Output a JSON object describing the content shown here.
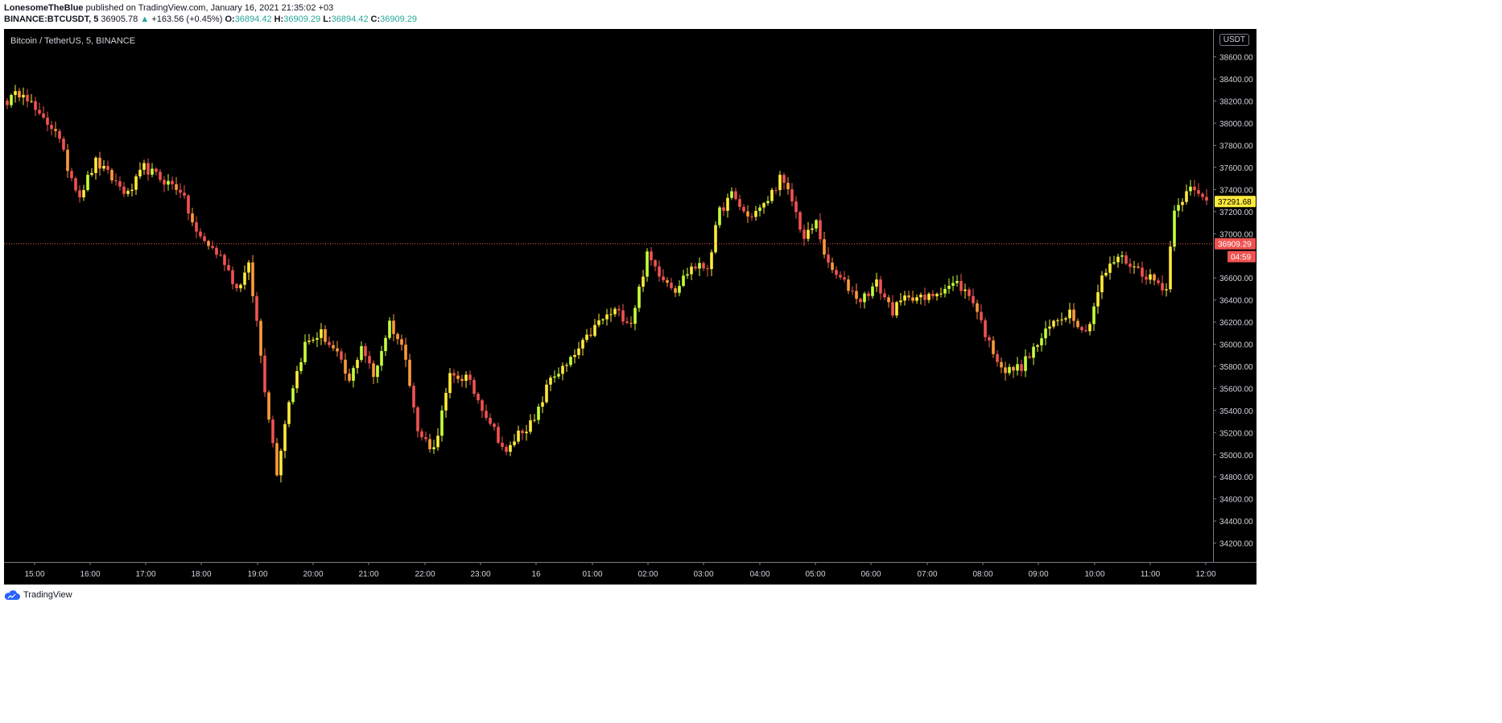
{
  "header": {
    "author": "LonesomeTheBlue",
    "published_text": "published on TradingView.com, January 16, 2021 21:35:02 +03",
    "symbol": "BINANCE:BTCUSDT, 5",
    "last_price": "36905.78",
    "change": "+163.56 (+0.45%)",
    "open_label": "O:",
    "open": "36894.42",
    "high_label": "H:",
    "high": "36909.29",
    "low_label": "L:",
    "low": "36894.42",
    "close_label": "C:",
    "close": "36909.29"
  },
  "chart_title": "Bitcoin / TetherUS, 5, BINANCE",
  "currency": "USDT",
  "footer": {
    "brand": "TradingView",
    "logo_icon": "tradingview-cloud-icon"
  },
  "price_labels": {
    "yellow": {
      "value": 37291.68,
      "text": "37291.68",
      "color": "#ffeb3b"
    },
    "current": {
      "value": 36909.29,
      "text": "36909.29",
      "color": "#ef5350"
    },
    "countdown": {
      "text": "04:59",
      "color": "#ef5350"
    }
  },
  "chart_data": {
    "type": "candlestick",
    "title": "Bitcoin / TetherUS, 5, BINANCE",
    "x_ticks": [
      "15:00",
      "16:00",
      "17:00",
      "18:00",
      "19:00",
      "20:00",
      "21:00",
      "22:00",
      "23:00",
      "16",
      "01:00",
      "02:00",
      "03:00",
      "04:00",
      "05:00",
      "06:00",
      "07:00",
      "08:00",
      "09:00",
      "10:00",
      "11:00",
      "12:00"
    ],
    "y_ticks": [
      "34200.00",
      "34400.00",
      "34600.00",
      "34800.00",
      "35000.00",
      "35200.00",
      "35400.00",
      "35600.00",
      "35800.00",
      "36000.00",
      "36200.00",
      "36400.00",
      "36600.00",
      "37000.00",
      "37200.00",
      "37400.00",
      "37600.00",
      "37800.00",
      "38000.00",
      "38200.00",
      "38400.00",
      "38600.00"
    ],
    "ylim": [
      34000,
      38800
    ],
    "colors": {
      "up": "#ffeb3b",
      "up_alt": "#c6ff3b",
      "down": "#ef5350",
      "down_alt": "#ff9a3b"
    },
    "anchors": [
      [
        0,
        38200
      ],
      [
        4,
        38300
      ],
      [
        8,
        38050
      ],
      [
        12,
        37950
      ],
      [
        15,
        37600
      ],
      [
        18,
        37350
      ],
      [
        22,
        37650
      ],
      [
        26,
        37500
      ],
      [
        30,
        37350
      ],
      [
        34,
        37600
      ],
      [
        38,
        37500
      ],
      [
        43,
        37400
      ],
      [
        47,
        37000
      ],
      [
        50,
        36900
      ],
      [
        54,
        36750
      ],
      [
        57,
        36500
      ],
      [
        60,
        36700
      ],
      [
        62,
        36200
      ],
      [
        64,
        35600
      ],
      [
        67,
        34850
      ],
      [
        70,
        35500
      ],
      [
        74,
        36000
      ],
      [
        78,
        36100
      ],
      [
        82,
        35900
      ],
      [
        85,
        35650
      ],
      [
        88,
        36000
      ],
      [
        91,
        35700
      ],
      [
        95,
        36200
      ],
      [
        99,
        35900
      ],
      [
        102,
        35200
      ],
      [
        106,
        35050
      ],
      [
        110,
        35700
      ],
      [
        114,
        35700
      ],
      [
        117,
        35500
      ],
      [
        120,
        35300
      ],
      [
        124,
        35000
      ],
      [
        127,
        35200
      ],
      [
        131,
        35300
      ],
      [
        135,
        35700
      ],
      [
        139,
        35800
      ],
      [
        143,
        36000
      ],
      [
        147,
        36200
      ],
      [
        151,
        36300
      ],
      [
        155,
        36200
      ],
      [
        159,
        36800
      ],
      [
        162,
        36650
      ],
      [
        166,
        36500
      ],
      [
        170,
        36700
      ],
      [
        174,
        36700
      ],
      [
        177,
        37200
      ],
      [
        180,
        37350
      ],
      [
        184,
        37150
      ],
      [
        188,
        37250
      ],
      [
        192,
        37500
      ],
      [
        195,
        37300
      ],
      [
        198,
        36950
      ],
      [
        201,
        37100
      ],
      [
        204,
        36700
      ],
      [
        208,
        36550
      ],
      [
        212,
        36400
      ],
      [
        216,
        36550
      ],
      [
        220,
        36300
      ],
      [
        224,
        36450
      ],
      [
        228,
        36400
      ],
      [
        232,
        36500
      ],
      [
        236,
        36550
      ],
      [
        240,
        36400
      ],
      [
        244,
        36000
      ],
      [
        248,
        35750
      ],
      [
        252,
        35800
      ],
      [
        256,
        36000
      ],
      [
        260,
        36200
      ],
      [
        264,
        36300
      ],
      [
        268,
        36100
      ],
      [
        272,
        36600
      ],
      [
        276,
        36800
      ],
      [
        280,
        36700
      ],
      [
        284,
        36600
      ],
      [
        288,
        36500
      ],
      [
        290,
        37250
      ],
      [
        294,
        37400
      ],
      [
        298,
        37300
      ]
    ]
  }
}
